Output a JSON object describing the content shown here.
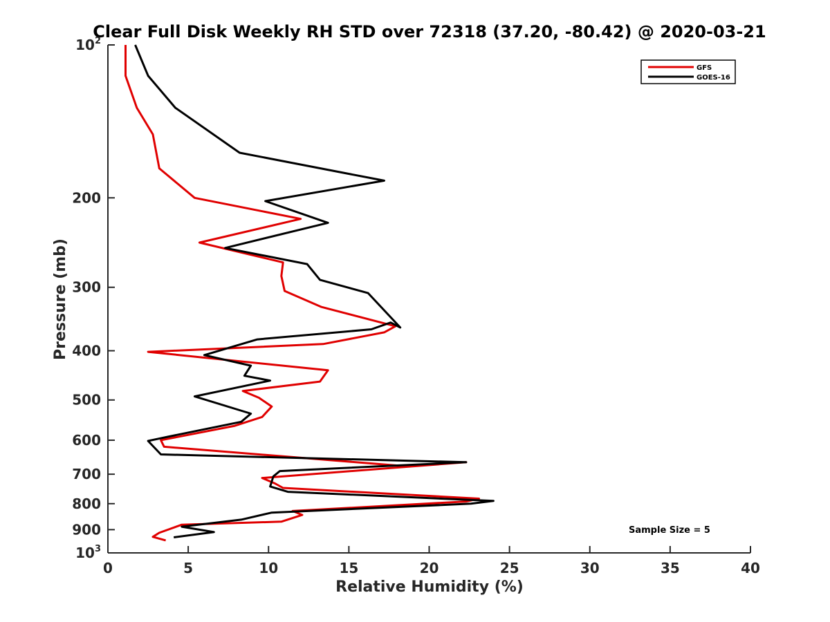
{
  "chart_data": {
    "type": "line",
    "title": "Clear Full Disk Weekly RH STD over 72318 (37.20, -80.42) @ 2020-03-21",
    "xlabel": "Relative Humidity (%)",
    "ylabel": "Pressure (mb)",
    "xlim": [
      0,
      40
    ],
    "ylim": [
      100,
      1000
    ],
    "y_scale": "log",
    "y_reversed": false,
    "x_ticks": [
      "0",
      "5",
      "10",
      "15",
      "20",
      "25",
      "30",
      "35",
      "40"
    ],
    "y_ticks": [
      {
        "value": 100,
        "base": "10",
        "exp": "2"
      },
      {
        "value": 200,
        "label": "200"
      },
      {
        "value": 300,
        "label": "300"
      },
      {
        "value": 400,
        "label": "400"
      },
      {
        "value": 500,
        "label": "500"
      },
      {
        "value": 600,
        "label": "600"
      },
      {
        "value": 700,
        "label": "700"
      },
      {
        "value": 800,
        "label": "800"
      },
      {
        "value": 900,
        "label": "900"
      },
      {
        "value": 1000,
        "base": "10",
        "exp": "3"
      }
    ],
    "legend_position": "top-right",
    "annotation": "Sample Size = 5",
    "series": [
      {
        "name": "GFS",
        "color": "#e00000",
        "points": [
          [
            1.1,
            100
          ],
          [
            1.1,
            115
          ],
          [
            1.8,
            133
          ],
          [
            2.8,
            150
          ],
          [
            3.2,
            175
          ],
          [
            5.4,
            200
          ],
          [
            12.0,
            220
          ],
          [
            5.7,
            245
          ],
          [
            10.9,
            268
          ],
          [
            10.8,
            285
          ],
          [
            11.0,
            305
          ],
          [
            13.3,
            328
          ],
          [
            17.9,
            358
          ],
          [
            17.2,
            368
          ],
          [
            13.4,
            388
          ],
          [
            2.5,
            402
          ],
          [
            13.7,
            437
          ],
          [
            13.2,
            460
          ],
          [
            8.4,
            480
          ],
          [
            9.4,
            495
          ],
          [
            10.2,
            515
          ],
          [
            9.6,
            540
          ],
          [
            7.9,
            562
          ],
          [
            3.3,
            600
          ],
          [
            3.5,
            618
          ],
          [
            18.5,
            675
          ],
          [
            22.3,
            663
          ],
          [
            9.6,
            712
          ],
          [
            10.4,
            730
          ],
          [
            10.9,
            745
          ],
          [
            23.1,
            782
          ],
          [
            22.3,
            792
          ],
          [
            11.5,
            827
          ],
          [
            12.1,
            842
          ],
          [
            10.8,
            868
          ],
          [
            4.6,
            880
          ],
          [
            3.2,
            913
          ],
          [
            2.8,
            930
          ],
          [
            3.6,
            945
          ]
        ]
      },
      {
        "name": "GOES-16",
        "color": "#000000",
        "points": [
          [
            1.7,
            100
          ],
          [
            2.5,
            115
          ],
          [
            4.2,
            133
          ],
          [
            8.2,
            163
          ],
          [
            17.2,
            185
          ],
          [
            9.8,
            203
          ],
          [
            13.7,
            224
          ],
          [
            7.3,
            251
          ],
          [
            12.4,
            270
          ],
          [
            13.2,
            290
          ],
          [
            16.2,
            308
          ],
          [
            18.2,
            360
          ],
          [
            17.6,
            352
          ],
          [
            16.4,
            363
          ],
          [
            9.3,
            380
          ],
          [
            6.0,
            408
          ],
          [
            8.9,
            428
          ],
          [
            8.5,
            448
          ],
          [
            10.1,
            458
          ],
          [
            5.4,
            492
          ],
          [
            8.9,
            532
          ],
          [
            8.3,
            552
          ],
          [
            3.8,
            590
          ],
          [
            2.5,
            602
          ],
          [
            3.3,
            640
          ],
          [
            22.3,
            663
          ],
          [
            10.7,
            690
          ],
          [
            10.3,
            707
          ],
          [
            10.1,
            740
          ],
          [
            11.2,
            758
          ],
          [
            24.0,
            790
          ],
          [
            22.6,
            800
          ],
          [
            10.2,
            833
          ],
          [
            8.3,
            860
          ],
          [
            4.6,
            888
          ],
          [
            6.6,
            910
          ],
          [
            4.1,
            932
          ]
        ]
      }
    ]
  }
}
